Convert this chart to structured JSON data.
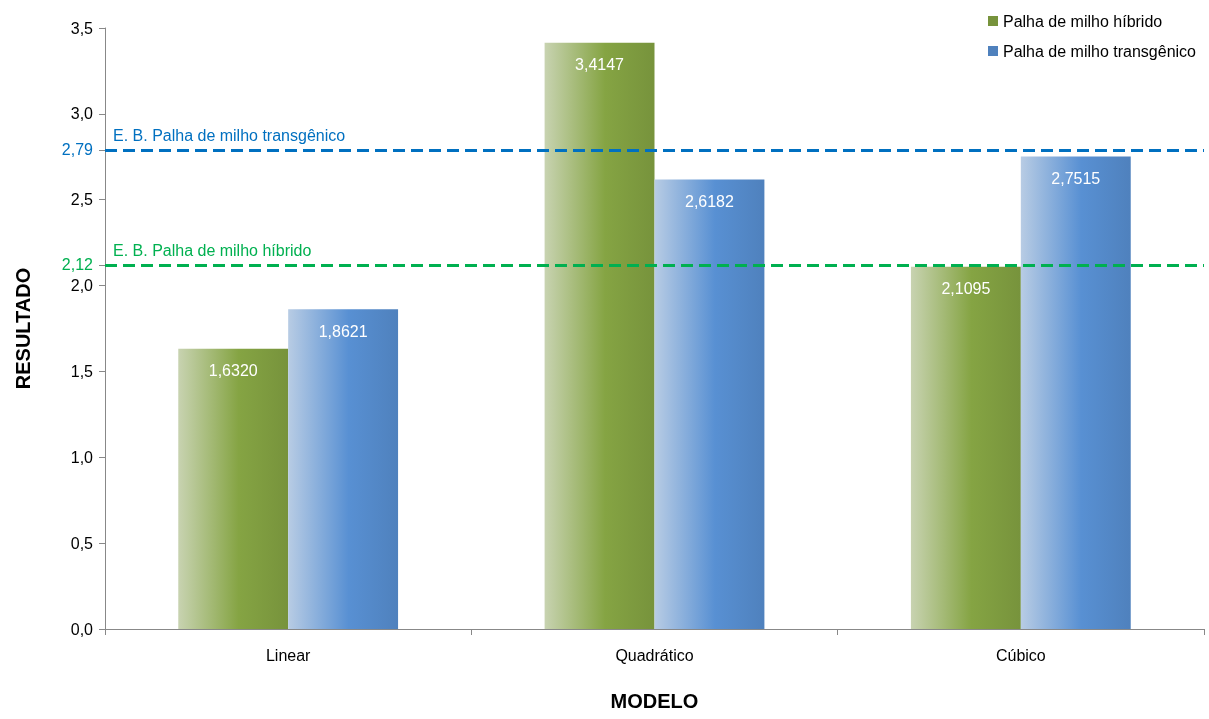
{
  "chart_data": {
    "type": "bar",
    "xlabel": "MODELO",
    "ylabel": "RESULTADO",
    "categories": [
      "Linear",
      "Quadrático",
      "Cúbico"
    ],
    "series": [
      {
        "name": "Palha de milho híbrido",
        "color": "#77933c",
        "values": [
          1.632,
          3.4147,
          2.1095
        ],
        "value_labels": [
          "1,6320",
          "3,4147",
          "2,1095"
        ]
      },
      {
        "name": "Palha de milho transgênico",
        "color": "#4f81bd",
        "values": [
          1.8621,
          2.6182,
          2.7515
        ],
        "value_labels": [
          "1,8621",
          "2,6182",
          "2,7515"
        ]
      }
    ],
    "ylim": [
      0,
      3.5
    ],
    "yticks": [
      {
        "value": 0,
        "label": "0,0"
      },
      {
        "value": 0.5,
        "label": "0,5"
      },
      {
        "value": 1,
        "label": "1,0"
      },
      {
        "value": 1.5,
        "label": "1,5"
      },
      {
        "value": 2,
        "label": "2,0"
      },
      {
        "value": 2.12,
        "label": "2,12"
      },
      {
        "value": 2.5,
        "label": "2,5"
      },
      {
        "value": 2.79,
        "label": "2,79"
      },
      {
        "value": 3,
        "label": "3,0"
      },
      {
        "value": 3.5,
        "label": "3,5"
      }
    ],
    "ref_lines": [
      {
        "axis": "y",
        "value": 2.79,
        "label": "E. B. Palha de milho transgênico",
        "color": "#0070c0",
        "line_style": "dashed"
      },
      {
        "axis": "y",
        "value": 2.12,
        "label": "E. B. Palha de milho híbrido",
        "color": "#00b050",
        "line_style": "dashed"
      }
    ],
    "grid": false,
    "legend": "top right"
  }
}
